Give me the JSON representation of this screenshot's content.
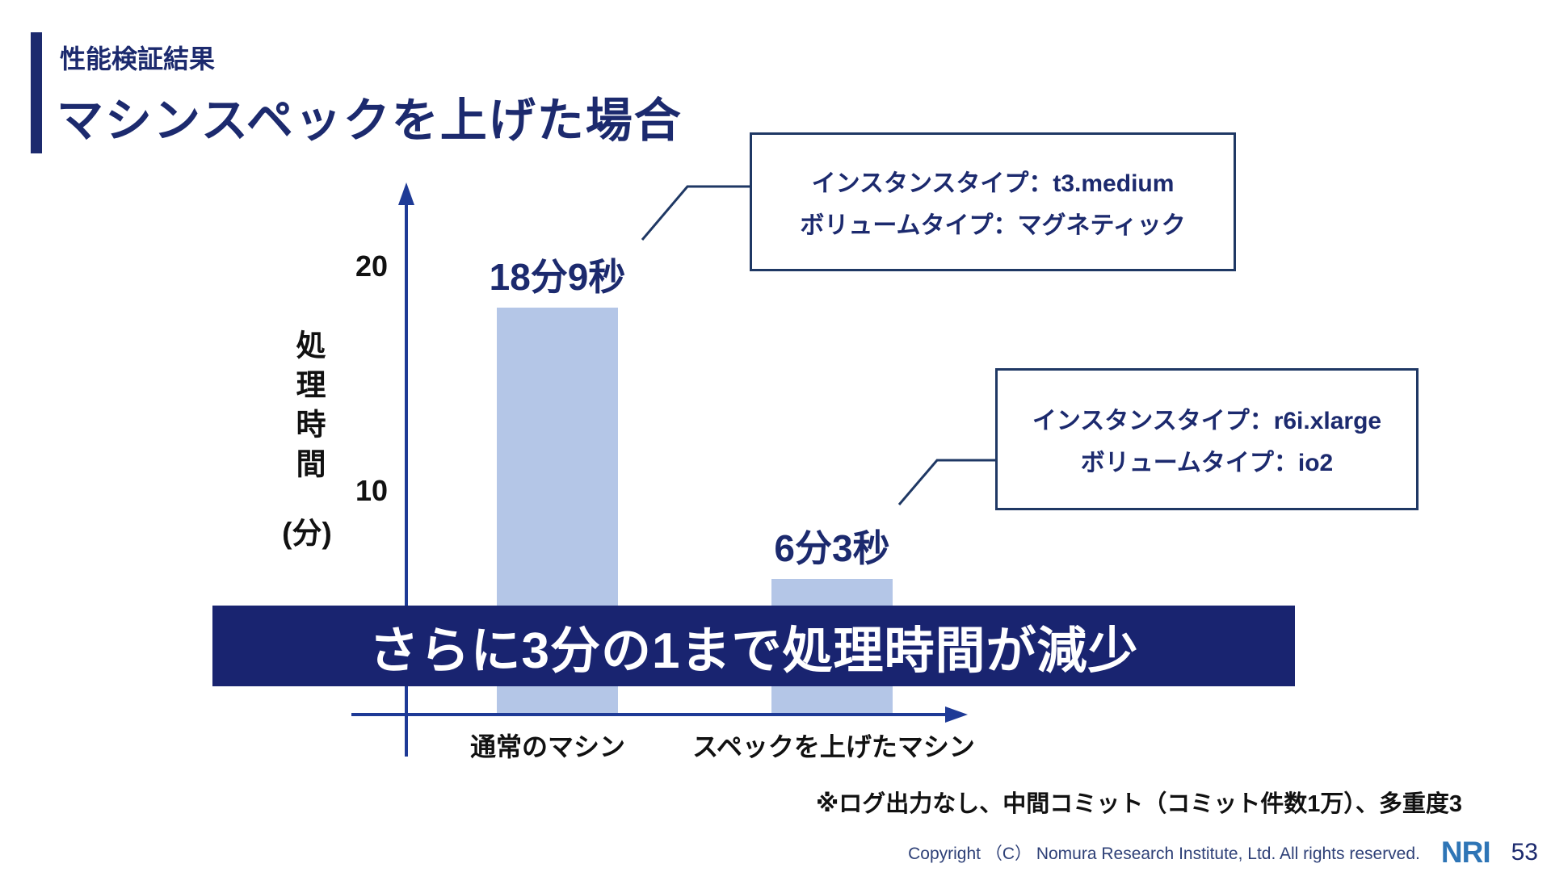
{
  "slide": {
    "kicker": "性能検証結果",
    "title": "マシンスペックを上げた場合"
  },
  "chart_data": {
    "type": "bar",
    "categories": [
      "通常のマシン",
      "スペックを上げたマシン"
    ],
    "values": [
      18.15,
      6.05
    ],
    "value_labels": [
      "18分9秒",
      "6分3秒"
    ],
    "ylabel": "処理時間",
    "ylabel_unit": "(分)",
    "yticks": [
      10,
      20
    ],
    "ylim": [
      0,
      24
    ],
    "grid": false,
    "legend": "none",
    "bar_color": "#b4c6e7"
  },
  "callouts": [
    {
      "line1": "インスタンスタイプ：t3.medium",
      "line2": "ボリュームタイプ：マグネティック"
    },
    {
      "line1": "インスタンスタイプ：r6i.xlarge",
      "line2": "ボリュームタイプ：io2"
    }
  ],
  "banner": {
    "text": "さらに3分の1まで処理時間が減少"
  },
  "footnote": "※ログ出力なし、中間コミット（コミット件数1万）、多重度3",
  "footer": {
    "copyright": "Copyright （C）  Nomura Research Institute, Ltd. All rights reserved.",
    "logo": "NRI",
    "page": "53"
  },
  "colors": {
    "navy": "#1c2a6e",
    "banner": "#192470",
    "axis": "#1e3a96",
    "bar": "#b4c6e7",
    "border": "#1f3864",
    "ink": "#111111",
    "logo": "#2e75b6",
    "footer": "#2e4077",
    "white": "#ffffff"
  }
}
